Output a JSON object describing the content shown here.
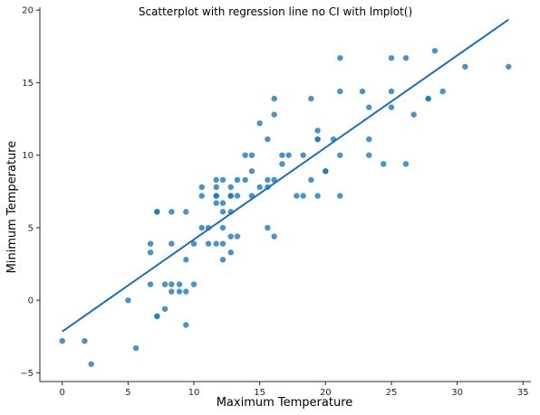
{
  "chart_data": {
    "type": "scatter",
    "title": "Scatterplot with regression line no CI with lmplot()",
    "xlabel": "Maximum Temperature",
    "ylabel": "Minimum Temperature",
    "xlim": [
      -1.7,
      35.6
    ],
    "ylim": [
      -5.6,
      20.2
    ],
    "xticks": [
      0,
      5,
      10,
      15,
      20,
      25,
      30,
      35
    ],
    "yticks": [
      -5,
      0,
      5,
      10,
      15,
      20
    ],
    "grid": false,
    "point_color": "#1f77b4",
    "line_color": "#1f6db4",
    "points": [
      [
        0.0,
        -2.8
      ],
      [
        1.7,
        -2.8
      ],
      [
        2.2,
        -4.4
      ],
      [
        5.0,
        0.0
      ],
      [
        5.6,
        -3.3
      ],
      [
        6.7,
        3.9
      ],
      [
        6.7,
        3.3
      ],
      [
        6.7,
        1.1
      ],
      [
        7.2,
        6.1
      ],
      [
        7.2,
        6.1
      ],
      [
        7.2,
        -1.1
      ],
      [
        7.2,
        -1.1
      ],
      [
        7.8,
        1.1
      ],
      [
        7.8,
        -0.6
      ],
      [
        8.3,
        6.1
      ],
      [
        8.3,
        3.9
      ],
      [
        8.3,
        1.1
      ],
      [
        8.3,
        0.6
      ],
      [
        8.9,
        1.1
      ],
      [
        8.9,
        0.6
      ],
      [
        9.4,
        6.1
      ],
      [
        9.4,
        2.8
      ],
      [
        9.4,
        0.6
      ],
      [
        9.4,
        -1.7
      ],
      [
        10.0,
        3.9
      ],
      [
        10.0,
        1.1
      ],
      [
        10.6,
        7.8
      ],
      [
        10.6,
        7.2
      ],
      [
        10.6,
        5.0
      ],
      [
        11.1,
        5.0
      ],
      [
        11.1,
        3.9
      ],
      [
        11.7,
        8.3
      ],
      [
        11.7,
        7.8
      ],
      [
        11.7,
        7.2
      ],
      [
        11.7,
        7.2
      ],
      [
        11.7,
        6.7
      ],
      [
        11.7,
        3.9
      ],
      [
        12.2,
        8.3
      ],
      [
        12.2,
        6.7
      ],
      [
        12.2,
        6.1
      ],
      [
        12.2,
        5.0
      ],
      [
        12.2,
        3.9
      ],
      [
        12.2,
        2.8
      ],
      [
        12.8,
        7.8
      ],
      [
        12.8,
        7.2
      ],
      [
        12.8,
        7.2
      ],
      [
        12.8,
        6.1
      ],
      [
        12.8,
        4.4
      ],
      [
        12.8,
        3.3
      ],
      [
        13.3,
        8.3
      ],
      [
        13.3,
        7.2
      ],
      [
        13.3,
        4.4
      ],
      [
        13.9,
        10.0
      ],
      [
        13.9,
        8.3
      ],
      [
        14.4,
        10.0
      ],
      [
        14.4,
        8.9
      ],
      [
        14.4,
        7.2
      ],
      [
        15.0,
        12.2
      ],
      [
        15.0,
        7.8
      ],
      [
        15.6,
        11.1
      ],
      [
        15.6,
        8.3
      ],
      [
        15.6,
        7.8
      ],
      [
        15.6,
        5.0
      ],
      [
        16.1,
        13.9
      ],
      [
        16.1,
        12.8
      ],
      [
        16.1,
        8.3
      ],
      [
        16.1,
        4.4
      ],
      [
        16.7,
        10.0
      ],
      [
        16.7,
        9.4
      ],
      [
        17.2,
        10.0
      ],
      [
        17.8,
        7.2
      ],
      [
        18.3,
        10.0
      ],
      [
        18.3,
        7.2
      ],
      [
        18.9,
        13.9
      ],
      [
        18.9,
        8.3
      ],
      [
        19.4,
        11.7
      ],
      [
        19.4,
        11.1
      ],
      [
        19.4,
        11.1
      ],
      [
        19.4,
        7.2
      ],
      [
        20.0,
        8.9
      ],
      [
        20.0,
        8.9
      ],
      [
        20.6,
        11.1
      ],
      [
        21.1,
        16.7
      ],
      [
        21.1,
        14.4
      ],
      [
        21.1,
        10.0
      ],
      [
        21.1,
        7.2
      ],
      [
        22.8,
        14.4
      ],
      [
        23.3,
        13.3
      ],
      [
        23.3,
        11.1
      ],
      [
        23.3,
        10.0
      ],
      [
        24.4,
        9.4
      ],
      [
        25.0,
        16.7
      ],
      [
        25.0,
        14.4
      ],
      [
        25.0,
        13.3
      ],
      [
        26.1,
        16.7
      ],
      [
        26.1,
        9.4
      ],
      [
        26.7,
        12.8
      ],
      [
        27.8,
        13.9
      ],
      [
        27.8,
        13.9
      ],
      [
        28.3,
        17.2
      ],
      [
        28.9,
        14.4
      ],
      [
        30.6,
        16.1
      ],
      [
        33.9,
        16.1
      ]
    ],
    "regression": {
      "x": [
        0.0,
        33.9
      ],
      "y": [
        -2.15,
        19.35
      ]
    }
  }
}
